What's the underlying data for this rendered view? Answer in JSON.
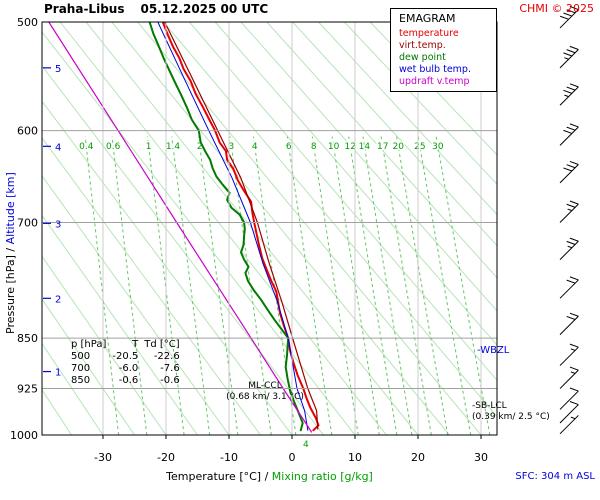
{
  "header": {
    "station": "Praha-Libus",
    "datetime": "05.12.2025 00 UTC",
    "copyright": "CHMI © 2025"
  },
  "colors": {
    "red": "#e60000",
    "dark_red": "#990000",
    "green": "#007a00",
    "mixing_green": "#00a000",
    "blue": "#0000dd",
    "magenta": "#cc00cc",
    "black": "#000000"
  },
  "legend": {
    "title": "EMAGRAM",
    "entries": [
      {
        "label": "temperature",
        "color": "#e60000"
      },
      {
        "label": "virt.temp.",
        "color": "#990000"
      },
      {
        "label": "dew point",
        "color": "#007a00"
      },
      {
        "label": "wet bulb temp.",
        "color": "#0000dd"
      },
      {
        "label": "updraft v.temp",
        "color": "#cc00cc"
      }
    ]
  },
  "axis": {
    "pressure_label": "Pressure [hPa]",
    "altitude_label": "Altitude [km]",
    "separator": " / ",
    "temp_label": "Temperature [°C]",
    "mixing_label": "Mixing ratio [g/kg]"
  },
  "table": {
    "headers": [
      "p [hPa]",
      "T",
      "Td [°C]"
    ],
    "rows": [
      [
        "500",
        "-20.5",
        "-22.6"
      ],
      [
        "700",
        "-6.0",
        "-7.6"
      ],
      [
        "850",
        "-0.6",
        "-0.6"
      ]
    ]
  },
  "annotations": {
    "ml_ccl_1": "ML-CCL",
    "ml_ccl_2": "(0.68 km/ 3.1 °C)",
    "wbzl": "-WBZL",
    "sb_lcl_1": "-SB-LCL",
    "sb_lcl_2": "(0.39 km/ 2.5 °C)",
    "sfc": "SFC: 304 m ASL",
    "surface_mixing": "4"
  },
  "chart_data": {
    "type": "line",
    "title": "EMAGRAM sounding Praha-Libus 05.12.2025 00 UTC",
    "x_axis": {
      "label": "Temperature [°C]",
      "ticks": [
        -30,
        -20,
        -10,
        0,
        10,
        20,
        30
      ],
      "min": -39.7,
      "max": 32.5
    },
    "y_axis": {
      "label": "Pressure [hPa]",
      "scale": "log",
      "ticks": [
        500,
        600,
        700,
        850,
        925,
        1000
      ],
      "min": 500,
      "max": 1000
    },
    "altitude_ticks": [
      {
        "km": 1,
        "p": 899
      },
      {
        "km": 2,
        "p": 795
      },
      {
        "km": 3,
        "p": 701
      },
      {
        "km": 4,
        "p": 616
      },
      {
        "km": 5,
        "p": 540
      }
    ],
    "mixing_ratio_lines": [
      0.4,
      0.6,
      1,
      1.4,
      2,
      3,
      4,
      6,
      8,
      10,
      12,
      14,
      17,
      20,
      25,
      30
    ],
    "dry_adiabats_theta_c": [
      -40,
      -35,
      -30,
      -25,
      -20,
      -15,
      -10,
      -5,
      0,
      5,
      10,
      15,
      20,
      25,
      30,
      35,
      40,
      45,
      50,
      55,
      60,
      65,
      70,
      75
    ],
    "series": [
      {
        "name": "temperature",
        "color": "#e60000",
        "width": 2,
        "points": [
          [
            992,
            3.4
          ],
          [
            984,
            4.2
          ],
          [
            972,
            3.8
          ],
          [
            955,
            2.9
          ],
          [
            940,
            2.3
          ],
          [
            925,
            1.8
          ],
          [
            905,
            0.9
          ],
          [
            885,
            0.2
          ],
          [
            868,
            -0.3
          ],
          [
            850,
            -0.6
          ],
          [
            832,
            -1.3
          ],
          [
            815,
            -1.9
          ],
          [
            800,
            -2.2
          ],
          [
            786,
            -2.5
          ],
          [
            772,
            -3.3
          ],
          [
            758,
            -4.0
          ],
          [
            744,
            -4.7
          ],
          [
            728,
            -5.2
          ],
          [
            714,
            -5.6
          ],
          [
            700,
            -6.0
          ],
          [
            688,
            -6.3
          ],
          [
            676,
            -6.5
          ],
          [
            664,
            -7.6
          ],
          [
            652,
            -8.6
          ],
          [
            640,
            -9.3
          ],
          [
            630,
            -10.3
          ],
          [
            621,
            -10.5
          ],
          [
            612,
            -11.5
          ],
          [
            600,
            -12.2
          ],
          [
            588,
            -13.2
          ],
          [
            576,
            -14.2
          ],
          [
            564,
            -15.3
          ],
          [
            552,
            -16.1
          ],
          [
            541,
            -17.2
          ],
          [
            531,
            -17.9
          ],
          [
            521,
            -18.9
          ],
          [
            511,
            -19.7
          ],
          [
            500,
            -20.5
          ]
        ]
      },
      {
        "name": "virt.temp.",
        "color": "#990000",
        "width": 1.2,
        "points": [
          [
            990,
            4.1
          ],
          [
            960,
            3.9
          ],
          [
            925,
            2.5
          ],
          [
            850,
            0.1
          ],
          [
            800,
            -1.6
          ],
          [
            750,
            -3.6
          ],
          [
            700,
            -5.5
          ],
          [
            650,
            -8.1
          ],
          [
            600,
            -11.8
          ],
          [
            550,
            -15.8
          ],
          [
            500,
            -20.2
          ]
        ]
      },
      {
        "name": "dew point",
        "color": "#007a00",
        "width": 2,
        "points": [
          [
            992,
            1.4
          ],
          [
            980,
            1.7
          ],
          [
            962,
            1.0
          ],
          [
            945,
            0.3
          ],
          [
            928,
            -0.3
          ],
          [
            910,
            -0.7
          ],
          [
            892,
            -1.0
          ],
          [
            875,
            -0.8
          ],
          [
            862,
            -0.7
          ],
          [
            850,
            -0.6
          ],
          [
            838,
            -1.6
          ],
          [
            824,
            -2.8
          ],
          [
            810,
            -3.9
          ],
          [
            797,
            -4.9
          ],
          [
            784,
            -6.1
          ],
          [
            772,
            -7.0
          ],
          [
            762,
            -7.4
          ],
          [
            754,
            -6.9
          ],
          [
            745,
            -7.6
          ],
          [
            736,
            -8.1
          ],
          [
            727,
            -7.7
          ],
          [
            716,
            -7.6
          ],
          [
            708,
            -7.5
          ],
          [
            700,
            -7.6
          ],
          [
            691,
            -8.3
          ],
          [
            683,
            -9.6
          ],
          [
            674,
            -10.3
          ],
          [
            666,
            -9.9
          ],
          [
            657,
            -11.0
          ],
          [
            648,
            -12.0
          ],
          [
            639,
            -12.6
          ],
          [
            630,
            -13.0
          ],
          [
            621,
            -13.8
          ],
          [
            612,
            -14.5
          ],
          [
            600,
            -14.8
          ],
          [
            589,
            -15.9
          ],
          [
            577,
            -16.7
          ],
          [
            565,
            -17.6
          ],
          [
            553,
            -18.6
          ],
          [
            542,
            -19.5
          ],
          [
            531,
            -20.4
          ],
          [
            520,
            -21.2
          ],
          [
            510,
            -22.0
          ],
          [
            500,
            -22.6
          ]
        ]
      },
      {
        "name": "wet bulb temp.",
        "color": "#0000dd",
        "width": 1,
        "points": [
          [
            992,
            2.5
          ],
          [
            960,
            2.0
          ],
          [
            925,
            0.8
          ],
          [
            850,
            -0.6
          ],
          [
            800,
            -2.3
          ],
          [
            750,
            -4.6
          ],
          [
            700,
            -6.6
          ],
          [
            650,
            -9.5
          ],
          [
            600,
            -13.2
          ],
          [
            550,
            -17.1
          ],
          [
            500,
            -21.3
          ]
        ]
      },
      {
        "name": "updraft v.temp",
        "color": "#cc00cc",
        "width": 1.2,
        "points": [
          [
            995,
            3.1
          ],
          [
            925,
            -1.4
          ],
          [
            850,
            -6.5
          ],
          [
            700,
            -18.3
          ],
          [
            600,
            -27.6
          ],
          [
            500,
            -38.6
          ]
        ]
      }
    ],
    "wind_barbs": {
      "color": "#000000",
      "levels": [
        {
          "p": 505,
          "kt": 40
        },
        {
          "p": 540,
          "kt": 35
        },
        {
          "p": 575,
          "kt": 35
        },
        {
          "p": 615,
          "kt": 30
        },
        {
          "p": 655,
          "kt": 30
        },
        {
          "p": 700,
          "kt": 25
        },
        {
          "p": 745,
          "kt": 25
        },
        {
          "p": 795,
          "kt": 20
        },
        {
          "p": 845,
          "kt": 20
        },
        {
          "p": 890,
          "kt": 15
        },
        {
          "p": 925,
          "kt": 15
        },
        {
          "p": 958,
          "kt": 10
        },
        {
          "p": 980,
          "kt": 10
        },
        {
          "p": 998,
          "kt": 5
        }
      ]
    }
  }
}
